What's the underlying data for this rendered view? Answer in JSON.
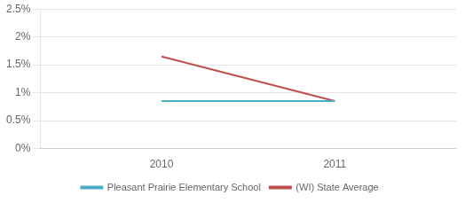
{
  "chart_data": {
    "type": "line",
    "x": [
      2010,
      2011
    ],
    "series": [
      {
        "name": "Pleasant Prairie Elementary School",
        "color": "#4bacc6",
        "values": [
          0.0085,
          0.0085
        ]
      },
      {
        "name": "(WI) State Average",
        "color": "#c0504d",
        "values": [
          0.0165,
          0.0085
        ]
      }
    ],
    "xlim": [
      2009.3,
      2011.7
    ],
    "xticks": [
      2010,
      2011
    ],
    "ylim": [
      0,
      0.025
    ],
    "yticks": [
      {
        "value": 0,
        "label": "0%"
      },
      {
        "value": 0.005,
        "label": "0.5%"
      },
      {
        "value": 0.01,
        "label": "1%"
      },
      {
        "value": 0.015,
        "label": "1.5%"
      },
      {
        "value": 0.02,
        "label": "2%"
      },
      {
        "value": 0.025,
        "label": "2.5%"
      }
    ],
    "grid": "y",
    "legend": "bottom"
  }
}
